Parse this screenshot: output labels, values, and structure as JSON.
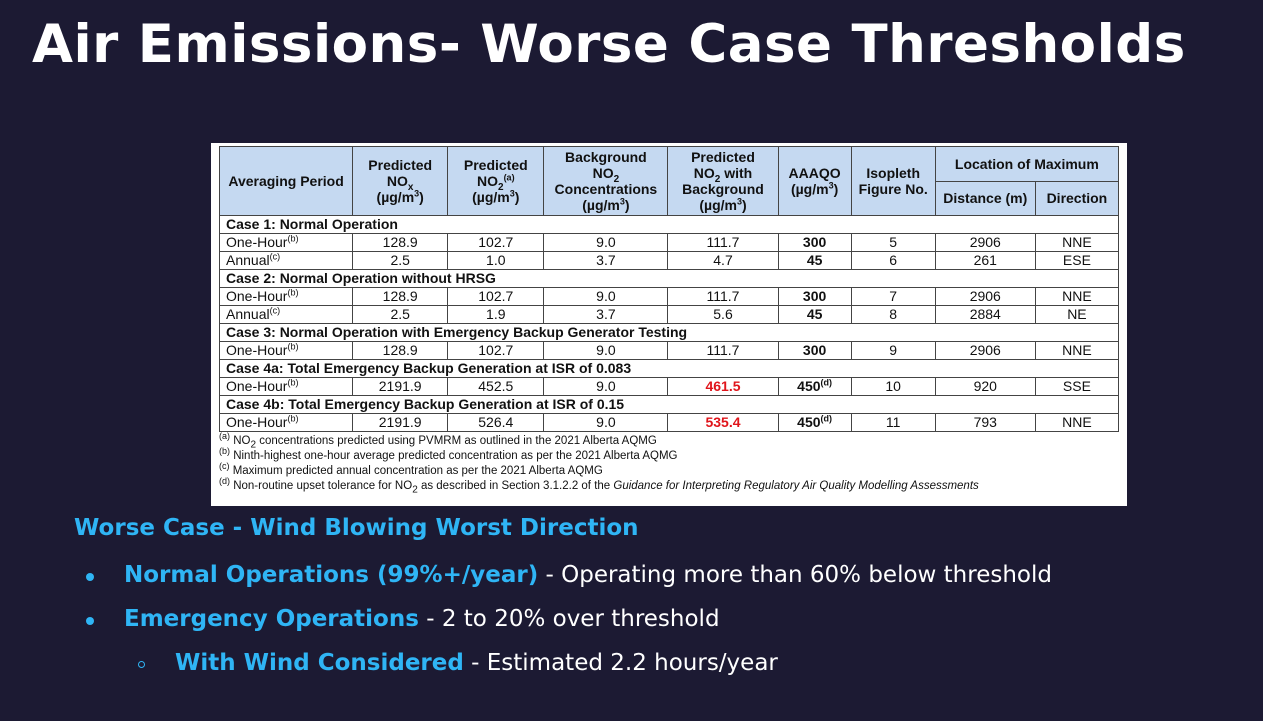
{
  "slide": {
    "title": "Air Emissions- Worse Case Thresholds"
  },
  "table": {
    "headers": {
      "averaging_period": "Averaging Period",
      "predicted_nox": "Predicted",
      "predicted_nox_sym": "NO",
      "predicted_nox_sub": "x",
      "predicted_nox_unit": "(µg/m",
      "predicted_no2": "Predicted",
      "predicted_no2_sym": "NO",
      "predicted_no2_sub": "2",
      "predicted_no2_sup": "(a)",
      "predicted_no2_unit": "(µg/m",
      "background_no2": "Background",
      "background_no2_sym": "NO",
      "background_no2_sub": "2",
      "background_no2_l3": "Concentrations",
      "background_no2_unit": "(µg/m",
      "predicted_bg": "Predicted",
      "predicted_bg_sym": "NO",
      "predicted_bg_sub": "2",
      "predicted_bg_with": " with",
      "predicted_bg_l3": "Background",
      "predicted_bg_unit": "(µg/m",
      "aaaqo": "AAAQO",
      "aaaqo_unit": "(µg/m",
      "isopleth": "Isopleth Figure No.",
      "location": "Location of Maximum",
      "distance": "Distance (m)",
      "direction": "Direction",
      "unit_sup": "3",
      "unit_close": ")"
    },
    "sections": [
      {
        "title": "Case 1:  Normal Operation",
        "rows": [
          {
            "period": "One-Hour",
            "note": "(b)",
            "nox": "128.9",
            "no2": "102.7",
            "bg": "9.0",
            "with_bg": "111.7",
            "aaaqo": "300",
            "aaaqo_note": "",
            "fig": "5",
            "distance": "2906",
            "direction": "NNE",
            "exceed": false
          },
          {
            "period": "Annual",
            "note": "(c)",
            "nox": "2.5",
            "no2": "1.0",
            "bg": "3.7",
            "with_bg": "4.7",
            "aaaqo": "45",
            "aaaqo_note": "",
            "fig": "6",
            "distance": "261",
            "direction": "ESE",
            "exceed": false
          }
        ]
      },
      {
        "title": "Case 2:  Normal Operation without HRSG",
        "rows": [
          {
            "period": "One-Hour",
            "note": "(b)",
            "nox": "128.9",
            "no2": "102.7",
            "bg": "9.0",
            "with_bg": "111.7",
            "aaaqo": "300",
            "aaaqo_note": "",
            "fig": "7",
            "distance": "2906",
            "direction": "NNE",
            "exceed": false
          },
          {
            "period": "Annual",
            "note": "(c)",
            "nox": "2.5",
            "no2": "1.9",
            "bg": "3.7",
            "with_bg": "5.6",
            "aaaqo": "45",
            "aaaqo_note": "",
            "fig": "8",
            "distance": "2884",
            "direction": "NE",
            "exceed": false
          }
        ]
      },
      {
        "title": "Case 3:  Normal Operation with Emergency Backup Generator Testing",
        "rows": [
          {
            "period": "One-Hour",
            "note": "(b)",
            "nox": "128.9",
            "no2": "102.7",
            "bg": "9.0",
            "with_bg": "111.7",
            "aaaqo": "300",
            "aaaqo_note": "",
            "fig": "9",
            "distance": "2906",
            "direction": "NNE",
            "exceed": false
          }
        ]
      },
      {
        "title": "Case 4a:  Total Emergency Backup Generation at ISR of 0.083",
        "rows": [
          {
            "period": "One-Hour",
            "note": "(b)",
            "nox": "2191.9",
            "no2": "452.5",
            "bg": "9.0",
            "with_bg": "461.5",
            "aaaqo": "450",
            "aaaqo_note": "(d)",
            "fig": "10",
            "distance": "920",
            "direction": "SSE",
            "exceed": true
          }
        ]
      },
      {
        "title": "Case 4b:  Total Emergency Backup Generation at ISR of 0.15",
        "rows": [
          {
            "period": "One-Hour",
            "note": "(b)",
            "nox": "2191.9",
            "no2": "526.4",
            "bg": "9.0",
            "with_bg": "535.4",
            "aaaqo": "450",
            "aaaqo_note": "(d)",
            "fig": "11",
            "distance": "793",
            "direction": "NNE",
            "exceed": true
          }
        ]
      }
    ],
    "footnotes": [
      {
        "mark": "(a)",
        "pre": " NO",
        "sub": "2",
        "text": " concentrations predicted using PVMRM as outlined in the 2021 Alberta AQMG",
        "italic": ""
      },
      {
        "mark": "(b)",
        "pre": "",
        "sub": "",
        "text": " Ninth-highest one-hour average predicted concentration as per the 2021 Alberta AQMG",
        "italic": ""
      },
      {
        "mark": "(c)",
        "pre": "",
        "sub": "",
        "text": " Maximum predicted annual concentration as per the 2021 Alberta AQMG",
        "italic": ""
      },
      {
        "mark": "(d)",
        "pre": " Non-routine upset tolerance for NO",
        "sub": "2",
        "text": " as described in Section 3.1.2.2 of the ",
        "italic": "Guidance for Interpreting Regulatory Air Quality Modelling Assessments"
      }
    ]
  },
  "summary": {
    "heading": "Worse Case - Wind Blowing Worst Direction",
    "items": [
      {
        "highlight": "Normal Operations (99%+/year)",
        "text": " - Operating more than 60% below threshold"
      },
      {
        "highlight": "Emergency Operations",
        "text": " - 2 to 20% over threshold"
      },
      {
        "highlight": "With Wind Considered",
        "text": " - Estimated 2.2 hours/year"
      }
    ]
  },
  "colors": {
    "background": "#1c1a33",
    "accent": "#2fb5f5",
    "table_header": "#c5d9f1",
    "exceedance": "#e0151b"
  }
}
